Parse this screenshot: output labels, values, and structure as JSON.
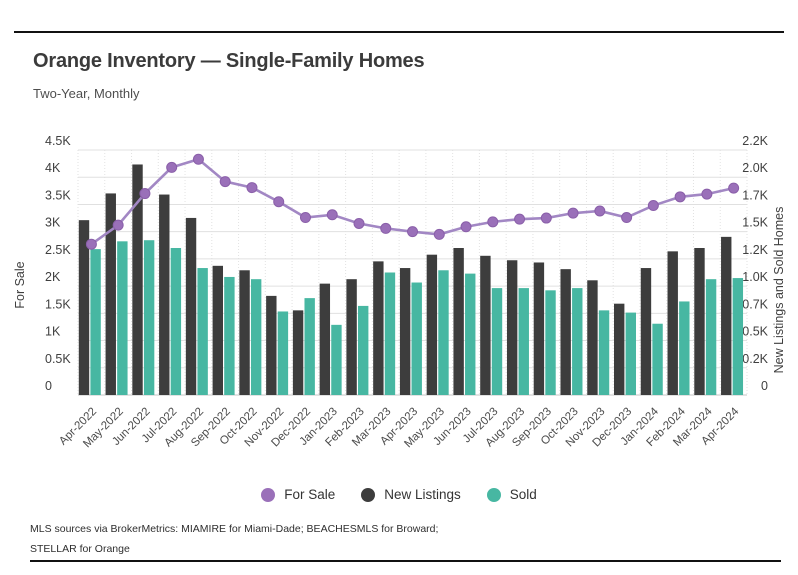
{
  "header": {
    "title": "Orange Inventory — Single-Family Homes",
    "subtitle": "Two-Year, Monthly"
  },
  "chart_data": {
    "type": "bar",
    "subtype": "grouped bars with overlaid line (dual axis)",
    "units": "thousands (K) of homes",
    "categories": [
      "Apr-2022",
      "May-2022",
      "Jun-2022",
      "Jul-2022",
      "Aug-2022",
      "Sep-2022",
      "Oct-2022",
      "Nov-2022",
      "Dec-2022",
      "Jan-2023",
      "Feb-2023",
      "Mar-2023",
      "Apr-2023",
      "May-2023",
      "Jun-2023",
      "Jul-2023",
      "Aug-2023",
      "Sep-2023",
      "Oct-2023",
      "Nov-2023",
      "Dec-2023",
      "Jan-2024",
      "Feb-2024",
      "Mar-2024",
      "Apr-2024"
    ],
    "series": [
      {
        "name": "For Sale",
        "type": "line",
        "axis": "left",
        "color": "#9a70b9",
        "line_color": "#a287c4",
        "values": [
          2.77,
          3.12,
          3.7,
          4.18,
          4.33,
          3.92,
          3.81,
          3.55,
          3.26,
          3.31,
          3.15,
          3.06,
          3.0,
          2.95,
          3.09,
          3.18,
          3.23,
          3.25,
          3.34,
          3.38,
          3.26,
          3.48,
          3.64,
          3.69,
          3.8
        ]
      },
      {
        "name": "New Listings",
        "type": "bar",
        "axis": "right",
        "color": "#3d3d3d",
        "values": [
          1.57,
          1.81,
          2.07,
          1.8,
          1.59,
          1.16,
          1.12,
          0.89,
          0.76,
          1.0,
          1.04,
          1.2,
          1.14,
          1.26,
          1.32,
          1.25,
          1.21,
          1.19,
          1.13,
          1.03,
          0.82,
          1.14,
          1.29,
          1.32,
          1.42
        ]
      },
      {
        "name": "Sold",
        "type": "bar",
        "axis": "right",
        "color": "#47b7a2",
        "values": [
          1.31,
          1.38,
          1.39,
          1.32,
          1.14,
          1.06,
          1.04,
          0.75,
          0.87,
          0.63,
          0.8,
          1.1,
          1.01,
          1.12,
          1.09,
          0.96,
          0.96,
          0.94,
          0.96,
          0.76,
          0.74,
          0.64,
          0.84,
          1.04,
          1.05
        ]
      }
    ],
    "left_axis": {
      "title": "For Sale",
      "range": [
        0,
        4.5
      ],
      "ticks": [
        "0",
        "0.5K",
        "1K",
        "1.5K",
        "2K",
        "2.5K",
        "3K",
        "3.5K",
        "4K",
        "4.5K"
      ]
    },
    "right_axis": {
      "title": "New Listings and Sold Homes",
      "range": [
        0,
        2.2
      ],
      "ticks": [
        "0",
        "0.2K",
        "0.5K",
        "0.7K",
        "1.0K",
        "1.2K",
        "1.5K",
        "1.7K",
        "2.0K",
        "2.2K"
      ]
    },
    "grid": true,
    "legend_position": "bottom center"
  },
  "legend": {
    "items": [
      {
        "label": "For Sale",
        "color": "#9a70b9"
      },
      {
        "label": "New Listings",
        "color": "#3d3d3d"
      },
      {
        "label": "Sold",
        "color": "#47b7a2"
      }
    ]
  },
  "footer": {
    "line1": "MLS sources via BrokerMetrics: MIAMIRE for Miami-Dade; BEACHESMLS for Broward;",
    "line2": "STELLAR for Orange"
  }
}
